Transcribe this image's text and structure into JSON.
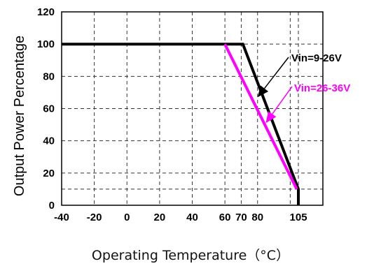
{
  "chart_data": {
    "type": "line",
    "title": "",
    "xlabel": "Operating Temperature（°C）",
    "ylabel": "Output Power Percentage",
    "xlim": [
      -40,
      120
    ],
    "ylim": [
      0,
      120
    ],
    "x_ticks": [
      -40,
      -20,
      0,
      20,
      40,
      60,
      70,
      80,
      105
    ],
    "y_ticks": [
      0,
      20,
      40,
      60,
      80,
      100,
      120
    ],
    "x_gridlines": [
      -40,
      -20,
      0,
      20,
      40,
      60,
      70,
      80,
      100,
      105,
      120
    ],
    "y_gridlines": [
      10,
      20,
      40,
      60,
      80,
      100,
      120
    ],
    "grid": true,
    "series": [
      {
        "name": "Vin=9-26V",
        "color": "#000000",
        "points": [
          [
            -40,
            100
          ],
          [
            71,
            100
          ],
          [
            105,
            10
          ],
          [
            105,
            0
          ]
        ]
      },
      {
        "name": "Vin=26-36V",
        "color": "#ff00ff",
        "points": [
          [
            60,
            100
          ],
          [
            104,
            10
          ]
        ]
      }
    ],
    "annotations": [
      {
        "text": "Vin=9-26V",
        "color": "#000000",
        "arrow_to": [
          80,
          67
        ]
      },
      {
        "text": "Vin=26-36V",
        "color": "#ff00ff",
        "arrow_to": [
          85,
          51
        ]
      }
    ]
  }
}
